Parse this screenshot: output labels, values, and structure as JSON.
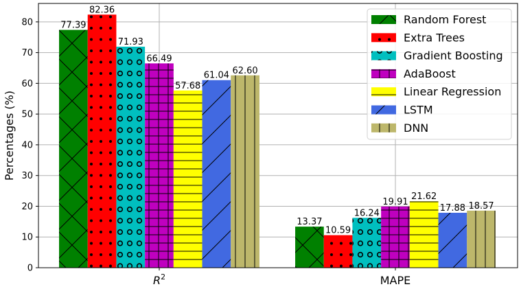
{
  "chart_data": {
    "type": "bar",
    "categories": [
      "R^2",
      "MAPE"
    ],
    "ylabel": "Percentages (%)",
    "xlabel": "",
    "ylim": [
      0,
      86
    ],
    "yticks": [
      0,
      10,
      20,
      30,
      40,
      50,
      60,
      70,
      80
    ],
    "grid": true,
    "legend_position": "top-right",
    "series": [
      {
        "name": "Random Forest",
        "values": [
          77.39,
          13.37
        ],
        "value_labels": [
          "77.39",
          "13.37"
        ],
        "color": "#008000",
        "hatch": "x"
      },
      {
        "name": "Extra Trees",
        "values": [
          82.36,
          10.59
        ],
        "value_labels": [
          "82.36",
          "10.59"
        ],
        "color": "#ff0000",
        "hatch": "dots"
      },
      {
        "name": "Gradient Boosting",
        "values": [
          71.93,
          16.24
        ],
        "value_labels": [
          "71.93",
          "16.24"
        ],
        "color": "#00bfbf",
        "hatch": "circles"
      },
      {
        "name": "AdaBoost",
        "values": [
          66.49,
          19.91
        ],
        "value_labels": [
          "66.49",
          "19.91"
        ],
        "color": "#bf00bf",
        "hatch": "grid"
      },
      {
        "name": "Linear Regression",
        "values": [
          57.68,
          21.62
        ],
        "value_labels": [
          "57.68",
          "21.62"
        ],
        "color": "#ffff00",
        "hatch": "horizontal"
      },
      {
        "name": "LSTM",
        "values": [
          61.04,
          17.88
        ],
        "value_labels": [
          "61.04",
          "17.88"
        ],
        "color": "#4169e1",
        "hatch": "diagonal"
      },
      {
        "name": "DNN",
        "values": [
          62.6,
          18.57
        ],
        "value_labels": [
          "62.60",
          "18.57"
        ],
        "color": "#bdb76b",
        "hatch": "vertical"
      }
    ]
  }
}
